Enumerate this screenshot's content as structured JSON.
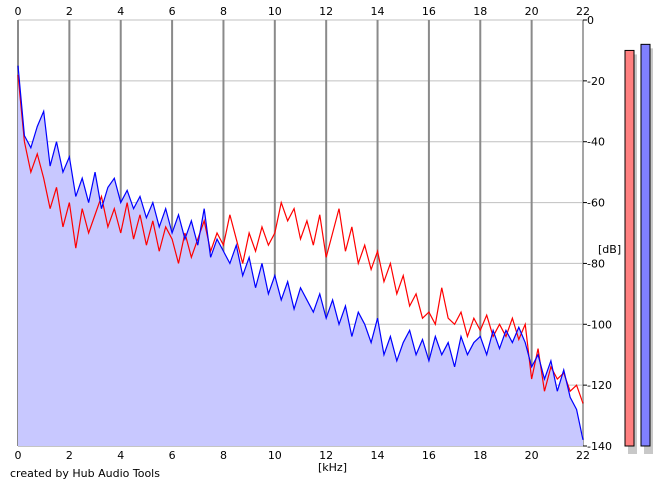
{
  "chart_data": {
    "type": "line",
    "title": "",
    "xlabel": "[kHz]",
    "ylabel": "[dB]",
    "xlim": [
      0,
      22
    ],
    "ylim": [
      -140,
      0
    ],
    "x_ticks": [
      "0",
      "2",
      "4",
      "6",
      "8",
      "10",
      "12",
      "14",
      "16",
      "18",
      "20",
      "22"
    ],
    "y_ticks": [
      "0",
      "-20",
      "-40",
      "-60",
      "-80",
      "-100",
      "-120",
      "-140"
    ],
    "grid": true,
    "x_start": 0,
    "x_step": 0.25,
    "fill_color": "#c8c8ff",
    "series": [
      {
        "color": "#ff0000",
        "values": [
          -18,
          -40,
          -50,
          -44,
          -52,
          -62,
          -55,
          -68,
          -60,
          -75,
          -62,
          -70,
          -64,
          -58,
          -68,
          -62,
          -70,
          -60,
          -72,
          -64,
          -74,
          -66,
          -76,
          -68,
          -72,
          -80,
          -70,
          -78,
          -72,
          -66,
          -76,
          -70,
          -74,
          -64,
          -72,
          -80,
          -70,
          -76,
          -68,
          -74,
          -70,
          -60,
          -66,
          -62,
          -72,
          -66,
          -74,
          -64,
          -78,
          -70,
          -62,
          -76,
          -68,
          -80,
          -74,
          -82,
          -76,
          -86,
          -80,
          -90,
          -84,
          -94,
          -90,
          -98,
          -96,
          -100,
          -88,
          -98,
          -100,
          -96,
          -104,
          -98,
          -102,
          -97,
          -104,
          -100,
          -104,
          -98,
          -105,
          -100,
          -118,
          -108,
          -122,
          -114,
          -118,
          -116,
          -122,
          -120,
          -126
        ]
      },
      {
        "color": "#0000ff",
        "values": [
          -15,
          -38,
          -42,
          -35,
          -30,
          -48,
          -40,
          -50,
          -45,
          -58,
          -52,
          -60,
          -50,
          -62,
          -55,
          -52,
          -60,
          -56,
          -62,
          -58,
          -65,
          -60,
          -68,
          -62,
          -70,
          -64,
          -72,
          -66,
          -74,
          -62,
          -78,
          -72,
          -76,
          -80,
          -74,
          -84,
          -78,
          -88,
          -80,
          -90,
          -84,
          -92,
          -86,
          -95,
          -88,
          -92,
          -96,
          -90,
          -98,
          -92,
          -100,
          -94,
          -104,
          -96,
          -100,
          -106,
          -98,
          -110,
          -104,
          -112,
          -106,
          -102,
          -110,
          -105,
          -112,
          -104,
          -110,
          -106,
          -114,
          -104,
          -110,
          -106,
          -104,
          -110,
          -102,
          -108,
          -102,
          -106,
          -101,
          -106,
          -114,
          -110,
          -118,
          -112,
          -122,
          -115,
          -124,
          -128,
          -138
        ]
      }
    ],
    "level_meters": [
      {
        "color": "#ff8080",
        "value": -10
      },
      {
        "color": "#8080ff",
        "value": -8
      }
    ]
  },
  "footer": {
    "credit": "created by Hub Audio Tools"
  }
}
